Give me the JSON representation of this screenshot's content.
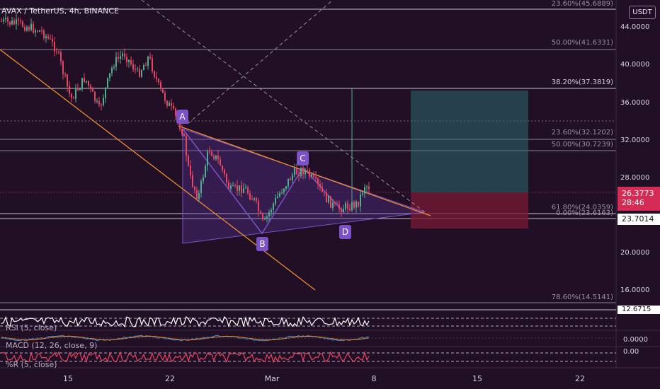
{
  "header": {
    "symbol_title": "AVAX / TetherUS, 4h, BINANCE"
  },
  "price_axis": {
    "unit": "USDT",
    "ticks": [
      "44.0000",
      "40.0000",
      "36.0000",
      "32.0000",
      "28.0000",
      "20.0000",
      "16.0000"
    ]
  },
  "badges": {
    "current_price": "26.3773",
    "countdown": "28:46",
    "level": "23.7014",
    "low_level": "12.6715"
  },
  "fib_levels": [
    "23.60%(45.6889)",
    "50.00%(41.6331)",
    "38.20%(37.3819)",
    "23.60%(32.1202)",
    "50.00%(30.7239)",
    "61.80%(24.0359)",
    "0.00%(23.6163)",
    "78.60%(14.5141)"
  ],
  "pattern_points": [
    "A",
    "B",
    "C",
    "D"
  ],
  "indicators": {
    "rsi_label": "RSI (5, close)",
    "macd_label": "MACD (12, 26, close, 9)",
    "macd_value": "0.0000",
    "williams_label": "%R (5, close)",
    "williams_value": "0.00"
  },
  "time_axis": {
    "ticks": [
      "15",
      "22",
      "Mar",
      "8",
      "15",
      "22"
    ]
  },
  "colors": {
    "background": "#210f26",
    "bullish": "#4eb08c",
    "bearish": "#e8455e",
    "trendline": "#f08c2c",
    "pattern": "#7b52c7",
    "take_profit": "#2c6b6d",
    "stop_loss": "#7a1a34",
    "current_price": "#d52c56"
  }
}
